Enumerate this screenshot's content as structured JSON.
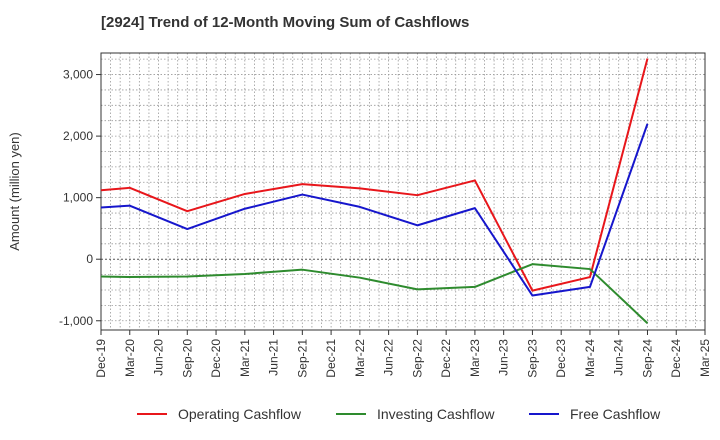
{
  "chart_data": {
    "type": "line",
    "title": "[2924]  Trend of 12-Month Moving Sum of Cashflows",
    "ylabel": "Amount (million yen)",
    "xlabel": "",
    "categories": [
      "Dec-19",
      "Mar-20",
      "Jun-20",
      "Sep-20",
      "Dec-20",
      "Mar-21",
      "Jun-21",
      "Sep-21",
      "Dec-21",
      "Mar-22",
      "Jun-22",
      "Sep-22",
      "Dec-22",
      "Mar-23",
      "Jun-23",
      "Sep-23",
      "Dec-23",
      "Mar-24",
      "Jun-24",
      "Sep-24",
      "Dec-24",
      "Mar-25"
    ],
    "ylim": [
      -1150,
      3350
    ],
    "yticks": [
      -1000,
      0,
      1000,
      2000,
      3000
    ],
    "ytick_labels": [
      "-1,000",
      "0",
      "1,000",
      "2,000",
      "3,000"
    ],
    "grid": true,
    "legend_position": "bottom",
    "series": [
      {
        "name": "Operating Cashflow",
        "color": "#e8161b",
        "points": [
          [
            "Dec-19",
            1120
          ],
          [
            "Mar-20",
            1160
          ],
          [
            "Sep-20",
            780
          ],
          [
            "Mar-21",
            1060
          ],
          [
            "Sep-21",
            1220
          ],
          [
            "Mar-22",
            1150
          ],
          [
            "Sep-22",
            1040
          ],
          [
            "Mar-23",
            1280
          ],
          [
            "Sep-23",
            -510
          ],
          [
            "Mar-24",
            -290
          ],
          [
            "Sep-24",
            3260
          ]
        ]
      },
      {
        "name": "Investing Cashflow",
        "color": "#2e8b2e",
        "points": [
          [
            "Dec-19",
            -280
          ],
          [
            "Mar-20",
            -290
          ],
          [
            "Sep-20",
            -280
          ],
          [
            "Mar-21",
            -240
          ],
          [
            "Sep-21",
            -170
          ],
          [
            "Mar-22",
            -300
          ],
          [
            "Sep-22",
            -490
          ],
          [
            "Mar-23",
            -450
          ],
          [
            "Sep-23",
            -80
          ],
          [
            "Mar-24",
            -160
          ],
          [
            "Sep-24",
            -1040
          ]
        ]
      },
      {
        "name": "Free Cashflow",
        "color": "#1616cc",
        "points": [
          [
            "Dec-19",
            840
          ],
          [
            "Mar-20",
            870
          ],
          [
            "Sep-20",
            490
          ],
          [
            "Mar-21",
            820
          ],
          [
            "Sep-21",
            1050
          ],
          [
            "Mar-22",
            850
          ],
          [
            "Sep-22",
            550
          ],
          [
            "Mar-23",
            830
          ],
          [
            "Sep-23",
            -590
          ],
          [
            "Mar-24",
            -450
          ],
          [
            "Sep-24",
            2200
          ]
        ]
      }
    ]
  }
}
